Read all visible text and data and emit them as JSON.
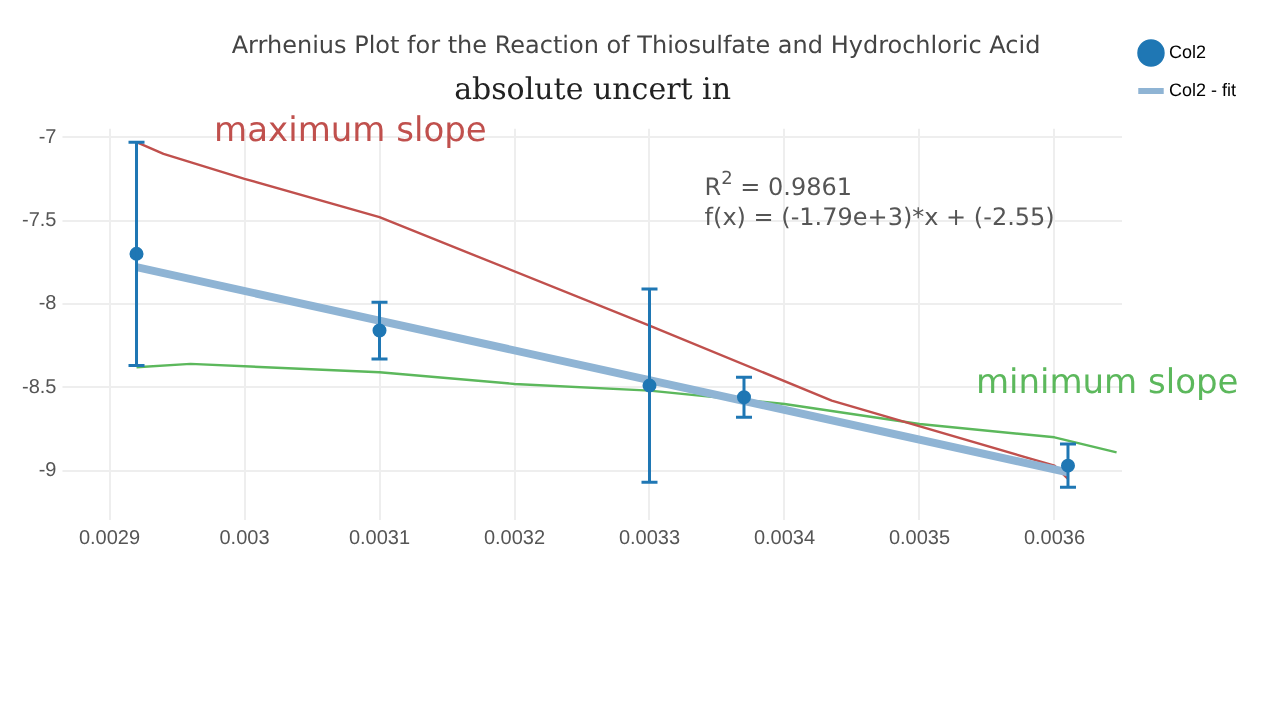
{
  "chart_data": {
    "type": "scatter",
    "title": "Arrhenius Plot for the Reaction of Thiosulfate and Hydrochloric Acid",
    "x": [
      0.00292,
      0.0031,
      0.0033,
      0.00337,
      0.00361
    ],
    "series": [
      {
        "name": "Col2",
        "marker": "circle",
        "color": "#1f77b4",
        "values": [
          -7.7,
          -8.16,
          -8.49,
          -8.56,
          -8.97
        ],
        "errors": [
          0.67,
          0.17,
          0.58,
          0.12,
          0.13
        ]
      },
      {
        "name": "Col2 - fit",
        "type": "line",
        "marker": "none",
        "color": "#8fb4d4",
        "x": [
          0.00292,
          0.00361
        ],
        "values": [
          -7.78,
          -9.01
        ]
      },
      {
        "type": "line",
        "marker": "none",
        "color": "#c0504d",
        "x": [
          0.00292,
          0.00294,
          0.003,
          0.0031,
          0.0033,
          0.003435,
          0.0036,
          0.00361
        ],
        "values": [
          -7.03,
          -7.1,
          -7.25,
          -7.48,
          -8.13,
          -8.58,
          -8.97,
          -9.05
        ]
      },
      {
        "type": "line",
        "marker": "none",
        "color": "#5cb85c",
        "x": [
          0.00292,
          0.00296,
          0.0031,
          0.0032,
          0.0033,
          0.0034,
          0.0035,
          0.0036,
          0.003646
        ],
        "values": [
          -8.38,
          -8.36,
          -8.41,
          -8.48,
          -8.52,
          -8.6,
          -8.72,
          -8.8,
          -8.89
        ]
      }
    ],
    "xlim": [
      0.002877,
      0.00365
    ],
    "xticks": [
      0.0029,
      0.003,
      0.0031,
      0.0032,
      0.0033,
      0.0034,
      0.0035,
      0.0036
    ],
    "ylim": [
      -9.2,
      -6.95
    ],
    "yticks": [
      -9,
      -8.5,
      -8,
      -7.5,
      -7
    ],
    "grid": true,
    "legend": "top right",
    "annotations": [
      "R$^{2}$ = 0.9861",
      "f(x) = (-1.79e+3)*x + (-2.55)",
      "maximum slope",
      "minimum slope",
      "absolute uncert in"
    ]
  }
}
